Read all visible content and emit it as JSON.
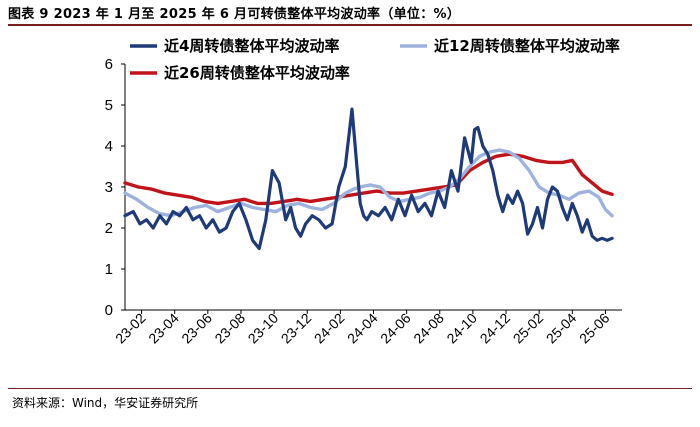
{
  "figure": {
    "title": "图表 9   2023 年 1 月至 2025 年 6 月可转债整体平均波动率（单位：%）",
    "source": "资料来源：Wind，华安证券研究所"
  },
  "chart_data": {
    "type": "line",
    "ylim": [
      0,
      6
    ],
    "yticks": [
      "0",
      "1",
      "2",
      "3",
      "4",
      "5",
      "6"
    ],
    "xticks": [
      "23-02",
      "23-04",
      "23-06",
      "23-08",
      "23-10",
      "23-12",
      "24-02",
      "24-04",
      "24-06",
      "24-08",
      "24-10",
      "24-12",
      "25-02",
      "25-04",
      "25-06"
    ],
    "x_range": [
      0,
      30
    ],
    "grid": false,
    "legend": "top",
    "series": [
      {
        "name": "近4周转债整体平均波动率",
        "color": "#1f3a78",
        "x": [
          0,
          0.5,
          0.9,
          1.3,
          1.7,
          2.1,
          2.5,
          2.9,
          3.3,
          3.7,
          4.1,
          4.5,
          4.9,
          5.3,
          5.7,
          6.1,
          6.5,
          6.9,
          7.3,
          7.7,
          8.1,
          8.5,
          8.9,
          9.3,
          9.7,
          10.0,
          10.3,
          10.6,
          10.9,
          11.3,
          11.7,
          12.1,
          12.5,
          12.9,
          13.3,
          13.7,
          14.0,
          14.2,
          14.4,
          14.6,
          14.9,
          15.3,
          15.7,
          16.1,
          16.5,
          16.9,
          17.3,
          17.7,
          18.1,
          18.5,
          18.9,
          19.3,
          19.7,
          20.1,
          20.5,
          20.9,
          21.1,
          21.3,
          21.6,
          21.9,
          22.2,
          22.5,
          22.8,
          23.1,
          23.4,
          23.7,
          24.0,
          24.3,
          24.6,
          24.9,
          25.2,
          25.5,
          25.8,
          26.1,
          26.4,
          26.7,
          27.0,
          27.3,
          27.6,
          27.9,
          28.2,
          28.5,
          28.8,
          29.1,
          29.4
        ],
        "values": [
          2.3,
          2.4,
          2.1,
          2.2,
          2.0,
          2.3,
          2.1,
          2.4,
          2.3,
          2.5,
          2.2,
          2.3,
          2.0,
          2.2,
          1.9,
          2.0,
          2.4,
          2.6,
          2.2,
          1.7,
          1.5,
          2.2,
          3.4,
          3.1,
          2.2,
          2.5,
          2.0,
          1.8,
          2.1,
          2.3,
          2.2,
          2.0,
          2.1,
          3.0,
          3.5,
          4.9,
          3.5,
          2.6,
          2.3,
          2.2,
          2.4,
          2.3,
          2.5,
          2.2,
          2.7,
          2.3,
          2.8,
          2.4,
          2.6,
          2.3,
          2.9,
          2.5,
          3.4,
          2.9,
          4.2,
          3.6,
          4.4,
          4.45,
          4.0,
          3.8,
          3.4,
          2.8,
          2.4,
          2.8,
          2.6,
          2.9,
          2.6,
          1.85,
          2.1,
          2.5,
          2.0,
          2.7,
          3.0,
          2.9,
          2.5,
          2.2,
          2.6,
          2.3,
          1.9,
          2.2,
          1.8,
          1.7,
          1.75,
          1.7,
          1.75
        ],
        "width": 3.2
      },
      {
        "name": "近12周转债整体平均波动率",
        "color": "#9db3de",
        "x": [
          0,
          0.7,
          1.4,
          2.1,
          2.8,
          3.5,
          4.2,
          4.9,
          5.6,
          6.3,
          7.0,
          7.7,
          8.4,
          9.1,
          9.8,
          10.5,
          11.2,
          11.9,
          12.6,
          13.3,
          13.8,
          14.2,
          14.8,
          15.4,
          16.0,
          16.6,
          17.2,
          17.8,
          18.4,
          19.0,
          19.6,
          20.2,
          20.8,
          21.4,
          22.0,
          22.6,
          23.2,
          23.8,
          24.4,
          25.0,
          25.6,
          26.2,
          26.8,
          27.4,
          28.0,
          28.6,
          29.0,
          29.4
        ],
        "values": [
          2.85,
          2.7,
          2.5,
          2.35,
          2.3,
          2.4,
          2.5,
          2.55,
          2.4,
          2.5,
          2.6,
          2.5,
          2.45,
          2.4,
          2.55,
          2.6,
          2.5,
          2.45,
          2.6,
          2.85,
          2.95,
          3.0,
          3.05,
          3.0,
          2.75,
          2.65,
          2.7,
          2.75,
          2.85,
          2.9,
          3.0,
          3.2,
          3.5,
          3.75,
          3.85,
          3.9,
          3.85,
          3.7,
          3.4,
          3.0,
          2.85,
          2.8,
          2.7,
          2.85,
          2.9,
          2.75,
          2.45,
          2.3
        ],
        "width": 3.4
      },
      {
        "name": "近26周转债整体平均波动率",
        "color": "#c0141a",
        "x": [
          0,
          0.8,
          1.6,
          2.4,
          3.2,
          4.0,
          4.8,
          5.6,
          6.4,
          7.2,
          8.0,
          8.8,
          9.6,
          10.4,
          11.2,
          12.0,
          12.8,
          13.6,
          14.4,
          15.2,
          16.0,
          16.8,
          17.6,
          18.4,
          19.2,
          20.0,
          20.8,
          21.6,
          22.4,
          23.2,
          24.0,
          24.8,
          25.6,
          26.4,
          27.0,
          27.6,
          28.2,
          28.8,
          29.4
        ],
        "values": [
          3.1,
          3.0,
          2.95,
          2.85,
          2.8,
          2.75,
          2.65,
          2.6,
          2.65,
          2.7,
          2.6,
          2.6,
          2.65,
          2.7,
          2.65,
          2.7,
          2.75,
          2.8,
          2.85,
          2.9,
          2.85,
          2.85,
          2.9,
          2.95,
          3.0,
          3.05,
          3.4,
          3.6,
          3.75,
          3.8,
          3.75,
          3.65,
          3.6,
          3.6,
          3.65,
          3.3,
          3.1,
          2.9,
          2.82
        ],
        "width": 3.4
      }
    ]
  }
}
